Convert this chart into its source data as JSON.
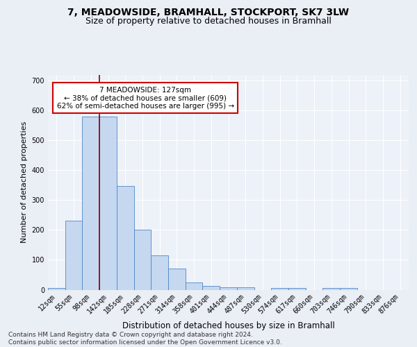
{
  "title": "7, MEADOWSIDE, BRAMHALL, STOCKPORT, SK7 3LW",
  "subtitle": "Size of property relative to detached houses in Bramhall",
  "xlabel": "Distribution of detached houses by size in Bramhall",
  "ylabel": "Number of detached properties",
  "categories": [
    "12sqm",
    "55sqm",
    "98sqm",
    "142sqm",
    "185sqm",
    "228sqm",
    "271sqm",
    "314sqm",
    "358sqm",
    "401sqm",
    "444sqm",
    "487sqm",
    "530sqm",
    "574sqm",
    "617sqm",
    "660sqm",
    "703sqm",
    "746sqm",
    "790sqm",
    "833sqm",
    "876sqm"
  ],
  "bar_heights": [
    5,
    232,
    580,
    580,
    348,
    202,
    115,
    72,
    25,
    13,
    9,
    7,
    0,
    5,
    5,
    0,
    5,
    5,
    0,
    0,
    0
  ],
  "bar_color": "#c5d8f0",
  "bar_edge_color": "#4f86c6",
  "property_line_color": "#8b0000",
  "annotation_text": "7 MEADOWSIDE: 127sqm\n← 38% of detached houses are smaller (609)\n62% of semi-detached houses are larger (995) →",
  "annotation_box_color": "#ffffff",
  "annotation_box_edge": "#cc0000",
  "ylim": [
    0,
    720
  ],
  "yticks": [
    0,
    100,
    200,
    300,
    400,
    500,
    600,
    700
  ],
  "bg_color": "#eaeef5",
  "plot_bg_color": "#edf1f8",
  "footer_text": "Contains HM Land Registry data © Crown copyright and database right 2024.\nContains public sector information licensed under the Open Government Licence v3.0.",
  "title_fontsize": 10,
  "subtitle_fontsize": 9,
  "xlabel_fontsize": 8.5,
  "ylabel_fontsize": 8,
  "tick_fontsize": 7,
  "footer_fontsize": 6.5,
  "ann_fontsize": 7.5
}
